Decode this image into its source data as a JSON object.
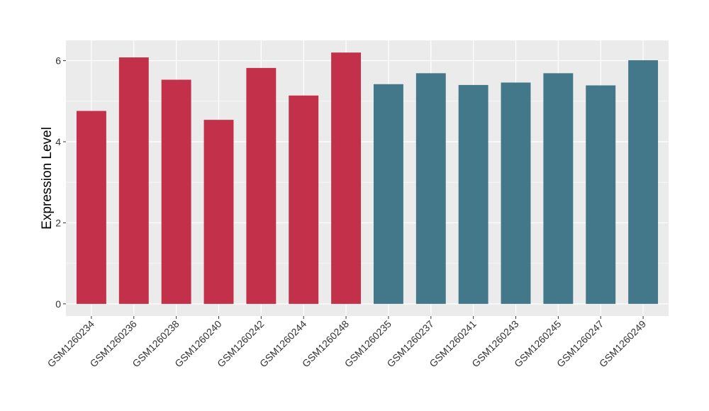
{
  "chart_data": {
    "type": "bar",
    "xlabel": "",
    "ylabel": "Expression Level",
    "ylim": [
      -0.3,
      6.5
    ],
    "yticks": [
      0,
      2,
      4,
      6
    ],
    "grid": true,
    "legend": "none",
    "categories": [
      "GSM1260234",
      "GSM1260236",
      "GSM1260238",
      "GSM1260240",
      "GSM1260242",
      "GSM1260244",
      "GSM1260248",
      "GSM1260235",
      "GSM1260237",
      "GSM1260241",
      "GSM1260243",
      "GSM1260245",
      "GSM1260247",
      "GSM1260249"
    ],
    "values": [
      4.76,
      6.08,
      5.53,
      4.54,
      5.82,
      5.14,
      6.2,
      5.42,
      5.69,
      5.4,
      5.46,
      5.69,
      5.39,
      6.01
    ],
    "bar_groups": [
      "a",
      "a",
      "a",
      "a",
      "a",
      "a",
      "a",
      "b",
      "b",
      "b",
      "b",
      "b",
      "b",
      "b"
    ],
    "colors": {
      "a": "#c23049",
      "b": "#42788a",
      "panel": "#ebebeb",
      "grid": "#ffffff"
    }
  }
}
